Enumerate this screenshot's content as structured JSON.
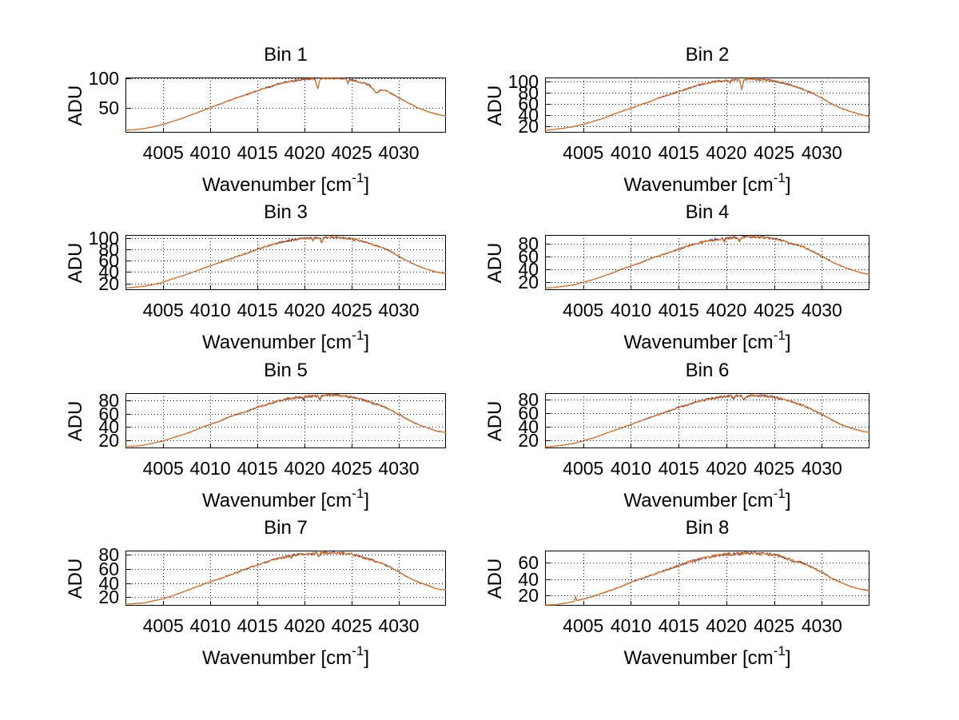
{
  "figure": {
    "ylabel": "ADU",
    "xlabel_pre": "Wavenumber [cm",
    "xlabel_sup": "-1",
    "xlabel_post": "]",
    "line_color": "#dd7420",
    "under_line_color": "#47306b",
    "axis_color": "#000000",
    "grid_color": "#1a1a1a",
    "background": "#ffffff",
    "grid_style": "dotted",
    "xlim": [
      4001,
      4035
    ],
    "xticks": [
      4005,
      4010,
      4015,
      4020,
      4025,
      4030
    ],
    "x": [
      4001,
      4002,
      4003,
      4004,
      4005,
      4006,
      4007,
      4008,
      4009,
      4010,
      4011,
      4012,
      4013,
      4014,
      4015,
      4016,
      4017,
      4018,
      4019,
      4020,
      4021,
      4022,
      4023,
      4024,
      4025,
      4026,
      4027,
      4028,
      4029,
      4030,
      4031,
      4032,
      4033,
      4034,
      4035
    ]
  },
  "chart_data": [
    {
      "type": "line",
      "title": "Bin 1",
      "ylim": [
        8,
        101
      ],
      "yticks": [
        50,
        100
      ],
      "values": [
        12,
        13,
        15,
        18,
        22,
        27,
        32,
        38,
        44,
        50,
        56,
        62,
        68,
        73,
        79,
        84,
        89,
        93,
        96,
        98,
        99,
        100,
        100,
        99,
        97,
        93,
        88,
        83,
        76,
        67,
        58,
        50,
        44,
        39,
        36
      ],
      "notches": [
        {
          "x": 4021.4,
          "w": 0.18,
          "d": 16
        },
        {
          "x": 4024.6,
          "w": 0.12,
          "d": 6
        },
        {
          "x": 4027.6,
          "w": 0.45,
          "d": 9
        }
      ]
    },
    {
      "type": "line",
      "title": "Bin 2",
      "ylim": [
        8,
        107
      ],
      "yticks": [
        20,
        40,
        60,
        80,
        100
      ],
      "values": [
        12,
        14,
        16,
        19,
        23,
        28,
        33,
        40,
        46,
        52,
        58,
        64,
        71,
        76,
        82,
        87,
        93,
        97,
        100,
        102,
        103,
        104,
        104,
        103,
        101,
        97,
        92,
        86,
        79,
        70,
        60,
        52,
        46,
        41,
        37
      ],
      "notches": [
        {
          "x": 4021.6,
          "w": 0.15,
          "d": 17
        },
        {
          "x": 4020.4,
          "w": 0.1,
          "d": 5
        }
      ]
    },
    {
      "type": "line",
      "title": "Bin 3",
      "ylim": [
        8,
        106
      ],
      "yticks": [
        20,
        40,
        60,
        80,
        100
      ],
      "values": [
        12,
        13,
        15,
        18,
        22,
        28,
        33,
        39,
        45,
        51,
        57,
        63,
        69,
        74,
        81,
        86,
        91,
        95,
        98,
        100,
        101,
        102,
        102,
        101,
        99,
        95,
        90,
        85,
        78,
        68,
        59,
        51,
        45,
        40,
        37
      ],
      "notches": [
        {
          "x": 4021.8,
          "w": 0.15,
          "d": 9
        },
        {
          "x": 4020.9,
          "w": 0.1,
          "d": 5
        }
      ]
    },
    {
      "type": "line",
      "title": "Bin 4",
      "ylim": [
        8,
        93
      ],
      "yticks": [
        20,
        40,
        60,
        80
      ],
      "values": [
        11,
        12,
        14,
        16,
        20,
        24,
        29,
        34,
        40,
        45,
        50,
        56,
        61,
        66,
        71,
        76,
        80,
        84,
        86,
        88,
        89,
        90,
        90,
        89,
        87,
        84,
        79,
        75,
        68,
        60,
        52,
        45,
        40,
        35,
        32
      ],
      "notches": [
        {
          "x": 4021.4,
          "w": 0.12,
          "d": 7
        },
        {
          "x": 4019.8,
          "w": 0.1,
          "d": 4
        }
      ]
    },
    {
      "type": "line",
      "title": "Bin 5",
      "ylim": [
        8,
        91
      ],
      "yticks": [
        20,
        40,
        60,
        80
      ],
      "values": [
        11,
        11,
        13,
        16,
        19,
        24,
        28,
        33,
        39,
        44,
        49,
        55,
        60,
        64,
        70,
        74,
        78,
        82,
        84,
        86,
        87,
        88,
        88,
        87,
        85,
        82,
        77,
        73,
        67,
        59,
        51,
        44,
        39,
        34,
        32
      ],
      "notches": [
        {
          "x": 4021.6,
          "w": 0.15,
          "d": 7
        },
        {
          "x": 4019.9,
          "w": 0.1,
          "d": 4
        }
      ]
    },
    {
      "type": "line",
      "title": "Bin 6",
      "ylim": [
        8,
        89
      ],
      "yticks": [
        20,
        40,
        60,
        80
      ],
      "values": [
        10,
        11,
        13,
        15,
        19,
        23,
        28,
        33,
        38,
        43,
        48,
        53,
        58,
        63,
        68,
        72,
        77,
        80,
        83,
        84,
        85,
        86,
        86,
        85,
        83,
        80,
        76,
        71,
        65,
        58,
        50,
        43,
        38,
        34,
        31
      ],
      "notches": [
        {
          "x": 4021.9,
          "w": 0.3,
          "d": 5
        },
        {
          "x": 4020.8,
          "w": 0.12,
          "d": 4
        }
      ]
    },
    {
      "type": "line",
      "title": "Bin 7",
      "ylim": [
        8,
        86
      ],
      "yticks": [
        20,
        40,
        60,
        80
      ],
      "values": [
        10,
        11,
        12,
        15,
        18,
        22,
        27,
        32,
        37,
        42,
        46,
        51,
        56,
        61,
        66,
        70,
        74,
        77,
        80,
        81,
        82,
        83,
        83,
        82,
        81,
        77,
        73,
        69,
        63,
        56,
        48,
        42,
        37,
        32,
        30
      ],
      "notches": [
        {
          "x": 4021.5,
          "w": 0.12,
          "d": 5
        },
        {
          "x": 4018.6,
          "w": 0.1,
          "d": 3
        }
      ]
    },
    {
      "type": "line",
      "title": "Bin 8",
      "ylim": [
        8,
        74
      ],
      "yticks": [
        20,
        40,
        60
      ],
      "values": [
        9,
        9,
        11,
        13,
        16,
        19,
        23,
        27,
        31,
        36,
        40,
        44,
        48,
        52,
        56,
        60,
        63,
        66,
        68,
        70,
        70,
        71,
        71,
        70,
        69,
        66,
        62,
        59,
        54,
        48,
        41,
        36,
        31,
        28,
        26
      ],
      "notches": [
        {
          "x": 4020.6,
          "w": 0.1,
          "d": 3
        },
        {
          "x": 4004.2,
          "w": 0.08,
          "d": -5
        }
      ]
    }
  ]
}
